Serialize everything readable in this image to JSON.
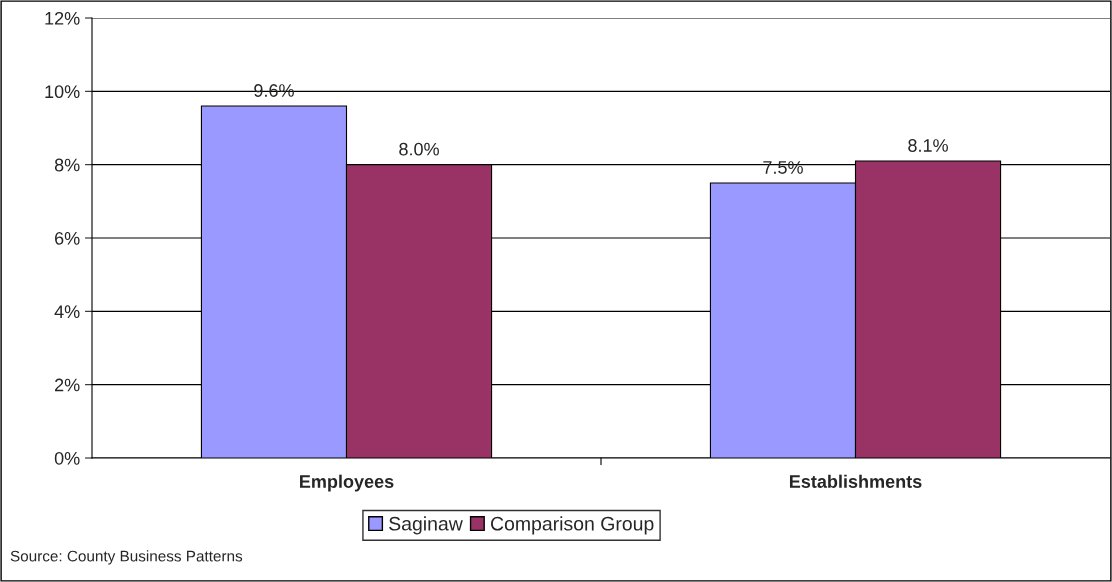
{
  "chart_data": {
    "type": "bar",
    "categories": [
      "Employees",
      "Establishments"
    ],
    "series": [
      {
        "name": "Saginaw",
        "color": "#9999ff",
        "values": [
          9.6,
          7.5
        ],
        "value_labels": [
          "9.6%",
          "7.5%"
        ]
      },
      {
        "name": "Comparison Group",
        "color": "#993366",
        "values": [
          8.0,
          8.1
        ],
        "value_labels": [
          "8.0%",
          "8.1%"
        ]
      }
    ],
    "ylim": [
      0,
      12
    ],
    "yticks": [
      {
        "value": 0,
        "label": "0%"
      },
      {
        "value": 2,
        "label": "2%"
      },
      {
        "value": 4,
        "label": "4%"
      },
      {
        "value": 6,
        "label": "6%"
      },
      {
        "value": 8,
        "label": "8%"
      },
      {
        "value": 10,
        "label": "10%"
      },
      {
        "value": 12,
        "label": "12%"
      }
    ],
    "grid": "y",
    "legend": "bottom",
    "annotations": [
      "Source: County Business Patterns"
    ]
  }
}
